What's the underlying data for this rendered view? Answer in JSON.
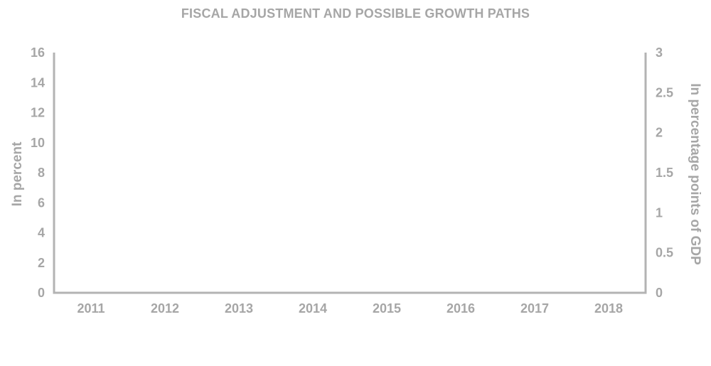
{
  "chart_data": {
    "type": "line",
    "title": "FISCAL ADJUSTMENT AND POSSIBLE GROWTH PATHS",
    "categories": [
      "2011",
      "2012",
      "2013",
      "2014",
      "2015",
      "2016",
      "2017",
      "2018"
    ],
    "y_left": {
      "label": "In percent",
      "ylim": [
        0,
        16
      ],
      "ticks": [
        "0",
        "2",
        "4",
        "6",
        "8",
        "10",
        "12",
        "14",
        "16"
      ]
    },
    "y_right": {
      "label": "In percentage points of GDP",
      "ylim": [
        0,
        3
      ],
      "ticks": [
        "0",
        "0.5",
        "1",
        "1.5",
        "2",
        "2.5",
        "3"
      ]
    },
    "series": [],
    "grid": false,
    "legend": "none",
    "colors": {
      "axis": "#b3b3b3",
      "text": "#a6a6a6"
    }
  }
}
